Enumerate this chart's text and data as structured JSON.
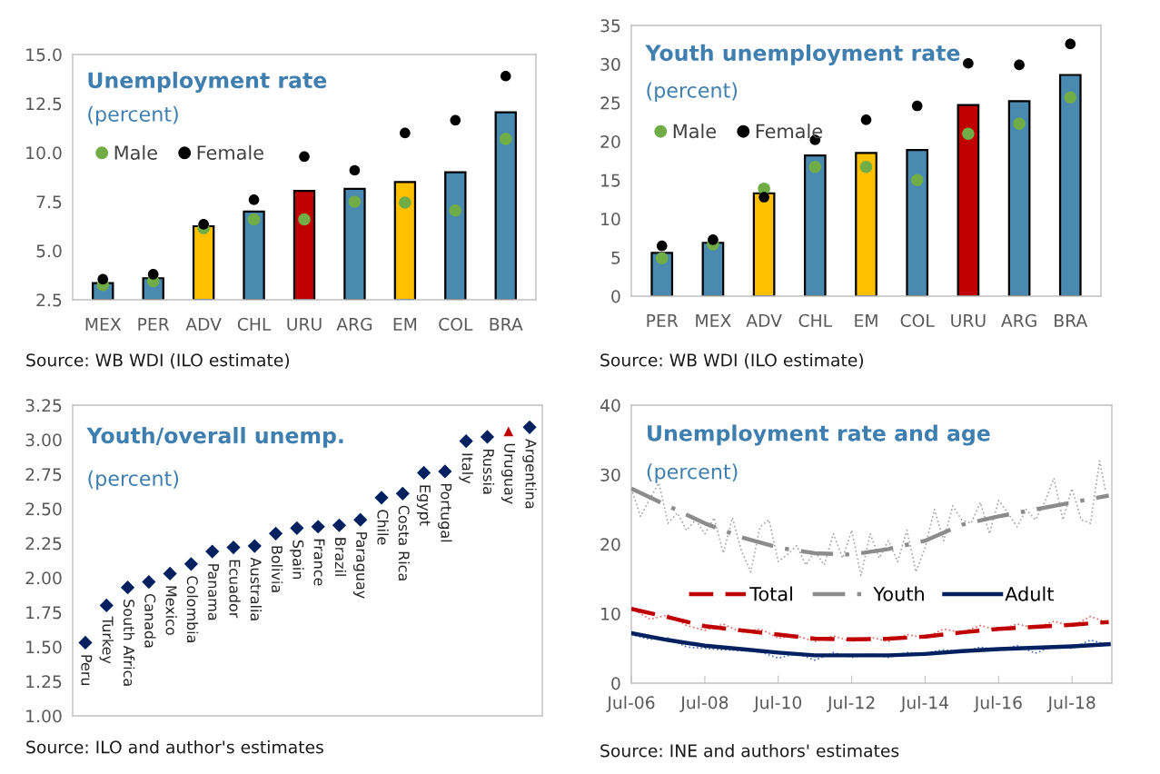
{
  "chart_data": [
    {
      "type": "bar",
      "title": "Unemployment rate",
      "subtitle": "(percent)",
      "categories": [
        "MEX",
        "PER",
        "ADV",
        "CHL",
        "URU",
        "ARG",
        "EM",
        "COL",
        "BRA"
      ],
      "ylim": [
        2.5,
        15.0
      ],
      "yticks": [
        {
          "value": 2.5,
          "label": "2.5"
        },
        {
          "value": 5,
          "label": "5.0"
        },
        {
          "value": 7.5,
          "label": "7.5"
        },
        {
          "value": 10,
          "label": "10.0"
        },
        {
          "value": 12.5,
          "label": "12.5"
        },
        {
          "value": 15,
          "label": "15.0"
        }
      ],
      "legend": "top left",
      "annotations": [
        "Source: WB WDI (ILO estimate)"
      ],
      "series": [
        {
          "type": "bar",
          "colors": [
            "#4a89b0",
            "#4a89b0",
            "#ffc000",
            "#4a89b0",
            "#c00000",
            "#4a89b0",
            "#ffc000",
            "#4a89b0",
            "#4a89b0"
          ],
          "values": [
            3.35,
            3.6,
            6.25,
            7.0,
            8.05,
            8.15,
            8.5,
            9.0,
            12.05
          ]
        },
        {
          "type": "scatter",
          "name": "Male",
          "color": "#70ad47",
          "marker": "circle",
          "values": [
            3.25,
            3.45,
            6.15,
            6.6,
            6.6,
            7.5,
            7.45,
            7.05,
            10.7
          ]
        },
        {
          "type": "scatter",
          "name": "Female",
          "color": "#000000",
          "marker": "circle",
          "values": [
            3.55,
            3.8,
            6.35,
            7.6,
            9.8,
            9.1,
            11.0,
            11.65,
            13.9
          ]
        }
      ]
    },
    {
      "type": "bar",
      "title": "Youth unemployment rate",
      "subtitle": "(percent)",
      "categories": [
        "PER",
        "MEX",
        "ADV",
        "CHL",
        "EM",
        "COL",
        "URU",
        "ARG",
        "BRA"
      ],
      "ylim": [
        0,
        35
      ],
      "yticks": [
        0,
        5,
        10,
        15,
        20,
        25,
        30,
        35
      ],
      "legend": "top left",
      "annotations": [
        "Source: WB WDI (ILO estimate)"
      ],
      "series": [
        {
          "type": "bar",
          "colors": [
            "#4a89b0",
            "#4a89b0",
            "#ffc000",
            "#4a89b0",
            "#ffc000",
            "#4a89b0",
            "#c00000",
            "#4a89b0",
            "#4a89b0"
          ],
          "values": [
            5.6,
            6.9,
            13.3,
            18.2,
            18.5,
            18.9,
            24.7,
            25.2,
            28.6
          ]
        },
        {
          "type": "scatter",
          "name": "Male",
          "color": "#70ad47",
          "marker": "circle",
          "values": [
            4.9,
            6.7,
            13.9,
            16.7,
            16.7,
            15.0,
            21.0,
            22.3,
            25.7
          ]
        },
        {
          "type": "scatter",
          "name": "Female",
          "color": "#000000",
          "marker": "circle",
          "values": [
            6.5,
            7.3,
            12.8,
            20.2,
            22.8,
            24.6,
            30.1,
            29.9,
            32.6
          ]
        }
      ]
    },
    {
      "type": "scatter",
      "title": "Youth/overall unemp.",
      "subtitle": "(percent)",
      "categories": [
        "Peru",
        "Turkey",
        "South Africa",
        "Canada",
        "Mexico",
        "Colombia",
        "Panama",
        "Ecuador",
        "Australia",
        "Bolivia",
        "Spain",
        "France",
        "Brazil",
        "Paraguay",
        "Chile",
        "Costa Rica",
        "Egypt",
        "Portugal",
        "Italy",
        "Russia",
        "Uruguay",
        "Argentina"
      ],
      "ylim": [
        1.0,
        3.25
      ],
      "yticks": [
        {
          "value": 1,
          "label": "1.00"
        },
        {
          "value": 1.25,
          "label": "1.25"
        },
        {
          "value": 1.5,
          "label": "1.50"
        },
        {
          "value": 1.75,
          "label": "1.75"
        },
        {
          "value": 2,
          "label": "2.00"
        },
        {
          "value": 2.25,
          "label": "2.25"
        },
        {
          "value": 2.5,
          "label": "2.50"
        },
        {
          "value": 2.75,
          "label": "2.75"
        },
        {
          "value": 3,
          "label": "3.00"
        },
        {
          "value": 3.25,
          "label": "3.25"
        }
      ],
      "tick_labels": "y",
      "annotations": [
        "Source: ILO and author's estimates"
      ],
      "series": [
        {
          "color": "#002060",
          "marker": "diamond",
          "values": [
            1.53,
            1.8,
            1.93,
            1.97,
            2.03,
            2.1,
            2.19,
            2.22,
            2.23,
            2.32,
            2.36,
            2.37,
            2.38,
            2.42,
            2.58,
            2.61,
            2.76,
            2.77,
            2.99,
            3.02,
            null,
            3.09
          ]
        },
        {
          "color": "#c00000",
          "marker": "triangle",
          "values": [
            null,
            null,
            null,
            null,
            null,
            null,
            null,
            null,
            null,
            null,
            null,
            null,
            null,
            null,
            null,
            null,
            null,
            null,
            null,
            null,
            3.06,
            null
          ]
        }
      ]
    },
    {
      "type": "line",
      "title": "Unemployment rate and age",
      "subtitle": "(percent)",
      "xlim": [
        "2006-07",
        "2019-08"
      ],
      "xticks": [
        {
          "value": "2006-07",
          "label": "Jul-06"
        },
        {
          "value": "2008-07",
          "label": "Jul-08"
        },
        {
          "value": "2010-07",
          "label": "Jul-10"
        },
        {
          "value": "2012-07",
          "label": "Jul-12"
        },
        {
          "value": "2014-07",
          "label": "Jul-14"
        },
        {
          "value": "2016-07",
          "label": "Jul-16"
        },
        {
          "value": "2018-07",
          "label": "Jul-18"
        }
      ],
      "ylim": [
        0,
        40
      ],
      "yticks": [
        0,
        10,
        20,
        30,
        40
      ],
      "legend": "center",
      "annotations": [
        "Source: INE and authors' estimates"
      ],
      "series": [
        {
          "color": "#a6a6a6",
          "line_style": "dotted",
          "x": [
            "2006-07",
            "2006-10",
            "2007-01",
            "2007-04",
            "2007-07",
            "2007-10",
            "2008-01",
            "2008-04",
            "2008-07",
            "2008-10",
            "2009-01",
            "2009-04",
            "2009-07",
            "2009-10",
            "2010-01",
            "2010-04",
            "2010-07",
            "2010-10",
            "2011-01",
            "2011-04",
            "2011-07",
            "2011-10",
            "2012-01",
            "2012-04",
            "2012-07",
            "2012-10",
            "2013-01",
            "2013-04",
            "2013-07",
            "2013-10",
            "2014-01",
            "2014-04",
            "2014-07",
            "2014-10",
            "2015-01",
            "2015-04",
            "2015-07",
            "2015-10",
            "2016-01",
            "2016-04",
            "2016-07",
            "2016-10",
            "2017-01",
            "2017-04",
            "2017-07",
            "2017-10",
            "2018-01",
            "2018-04",
            "2018-07",
            "2018-10",
            "2019-01",
            "2019-04",
            "2019-06"
          ],
          "values": [
            28,
            24,
            26.5,
            28.8,
            23,
            24.5,
            22,
            23.5,
            21.5,
            23.8,
            18.7,
            23.8,
            19,
            16,
            22.5,
            23.5,
            17.5,
            18.5,
            19.8,
            17,
            19,
            17,
            21.5,
            18,
            22,
            15.5,
            21.5,
            18,
            20.5,
            17.5,
            22,
            16,
            19.5,
            25,
            20.5,
            25.5,
            23.5,
            23,
            26,
            21.5,
            26.3,
            24.5,
            22.5,
            25,
            23.5,
            26,
            29.5,
            23.5,
            28,
            23.5,
            23,
            32,
            27.5
          ]
        },
        {
          "color": "#e06666",
          "line_style": "dotted",
          "x": [
            "2006-07",
            "2007-01",
            "2007-07",
            "2008-01",
            "2008-07",
            "2009-01",
            "2009-07",
            "2010-01",
            "2010-07",
            "2011-01",
            "2011-07",
            "2012-01",
            "2012-07",
            "2013-01",
            "2013-07",
            "2014-01",
            "2014-07",
            "2015-01",
            "2015-07",
            "2016-01",
            "2016-07",
            "2017-01",
            "2017-07",
            "2018-01",
            "2018-07",
            "2019-01",
            "2019-06"
          ],
          "values": [
            10.8,
            9.2,
            9.8,
            8.3,
            7.6,
            8.5,
            7.3,
            7.8,
            6.5,
            6.8,
            6.0,
            6.8,
            6.0,
            6.6,
            6.0,
            7.0,
            6.5,
            7.8,
            7.3,
            8.3,
            7.6,
            8.5,
            7.9,
            8.9,
            8.2,
            9.6,
            8.8
          ]
        },
        {
          "color": "#4a6fb0",
          "line_style": "dotted",
          "x": [
            "2006-07",
            "2007-01",
            "2007-07",
            "2008-01",
            "2008-07",
            "2009-01",
            "2009-07",
            "2010-01",
            "2010-07",
            "2011-01",
            "2011-07",
            "2012-01",
            "2012-07",
            "2013-01",
            "2013-07",
            "2014-01",
            "2014-07",
            "2015-01",
            "2015-07",
            "2016-01",
            "2016-07",
            "2017-01",
            "2017-07",
            "2018-01",
            "2018-07",
            "2019-01",
            "2019-06"
          ],
          "values": [
            7.0,
            6.3,
            6.5,
            5.2,
            5.0,
            4.8,
            4.7,
            4.5,
            3.6,
            4.3,
            3.3,
            4.4,
            3.7,
            4.2,
            3.7,
            4.4,
            4.3,
            4.8,
            4.4,
            5.2,
            4.7,
            5.4,
            4.3,
            5.4,
            5.0,
            6.2,
            5.6
          ]
        },
        {
          "name": "Total",
          "color": "#c00000",
          "line_style": "dashed",
          "x": [
            "2006-07",
            "2007-07",
            "2008-07",
            "2009-07",
            "2010-07",
            "2011-07",
            "2012-07",
            "2013-07",
            "2014-07",
            "2015-07",
            "2016-07",
            "2017-07",
            "2018-07",
            "2019-07"
          ],
          "values": [
            10.7,
            9.5,
            8.2,
            7.6,
            7.0,
            6.4,
            6.3,
            6.4,
            6.7,
            7.3,
            7.8,
            8.1,
            8.4,
            8.8
          ]
        },
        {
          "name": "Youth",
          "color": "#8c8c8c",
          "line_style": "dashdot",
          "x": [
            "2006-07",
            "2007-07",
            "2008-07",
            "2009-07",
            "2010-07",
            "2011-07",
            "2012-07",
            "2013-07",
            "2014-07",
            "2015-07",
            "2016-07",
            "2017-07",
            "2018-07",
            "2019-07"
          ],
          "values": [
            28,
            25.5,
            23,
            21,
            19.5,
            18.7,
            18.5,
            19.3,
            20.5,
            22.8,
            24.0,
            25.0,
            26,
            27
          ]
        },
        {
          "name": "Adult",
          "color": "#002060",
          "line_style": "solid",
          "x": [
            "2006-07",
            "2007-07",
            "2008-07",
            "2009-07",
            "2010-07",
            "2011-07",
            "2012-07",
            "2013-07",
            "2014-07",
            "2015-07",
            "2016-07",
            "2017-07",
            "2018-07",
            "2019-07"
          ],
          "values": [
            7.2,
            6.2,
            5.4,
            4.9,
            4.4,
            4.0,
            4.0,
            4.0,
            4.2,
            4.6,
            4.9,
            5.1,
            5.3,
            5.6
          ]
        }
      ]
    }
  ]
}
